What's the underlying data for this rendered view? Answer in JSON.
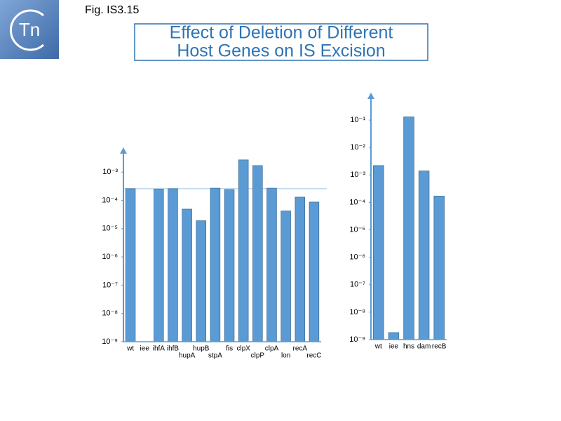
{
  "header": {
    "logo": "Tn",
    "figure": "Fig. IS3.15",
    "title": [
      "Effect of Deletion of Different",
      "Host Genes on IS Excision"
    ]
  },
  "chart_data": [
    {
      "type": "bar",
      "log_scale": true,
      "color": "#5b9bd5",
      "reference_line": true,
      "categories": [
        "wt",
        "iee",
        "ihfA",
        "ihfB",
        "hupA",
        "hupB",
        "stpA",
        "fis",
        "clpX",
        "clpP",
        "clpA",
        "lon",
        "recA",
        "recC"
      ],
      "values": [
        0.00026,
        null,
        0.00025,
        0.00026,
        4.9e-05,
        1.9e-05,
        0.00027,
        0.00024,
        0.0027,
        0.0017,
        0.00027,
        4.2e-05,
        0.00013,
        8.7e-05
      ],
      "ylim": [
        1e-09,
        0.0075
      ],
      "yticks": [
        {
          "value": 1e-09,
          "label": "10⁻⁹"
        },
        {
          "value": 1e-08,
          "label": "10⁻⁸"
        },
        {
          "value": 1e-07,
          "label": "10⁻⁷"
        },
        {
          "value": 1e-06,
          "label": "10⁻⁶"
        },
        {
          "value": 1e-05,
          "label": "10⁻⁵"
        },
        {
          "value": 0.0001,
          "label": "10⁻⁴"
        },
        {
          "value": 0.001,
          "label": "10⁻³"
        }
      ]
    },
    {
      "type": "bar",
      "log_scale": true,
      "color": "#5b9bd5",
      "reference_line": false,
      "categories": [
        "wt",
        "iee",
        "hns",
        "dam",
        "recB"
      ],
      "values": [
        0.0022,
        1.8e-09,
        0.13,
        0.0014,
        0.00017
      ],
      "ylim": [
        1e-09,
        1
      ],
      "yticks": [
        {
          "value": 1e-09,
          "label": "10⁻⁹"
        },
        {
          "value": 1e-08,
          "label": "10⁻⁸"
        },
        {
          "value": 1e-07,
          "label": "10⁻⁷"
        },
        {
          "value": 1e-06,
          "label": "10⁻⁶"
        },
        {
          "value": 1e-05,
          "label": "10⁻⁵"
        },
        {
          "value": 0.0001,
          "label": "10⁻⁴"
        },
        {
          "value": 0.001,
          "label": "10⁻³"
        },
        {
          "value": 0.01,
          "label": "10⁻²"
        },
        {
          "value": 0.1,
          "label": "10⁻¹"
        }
      ]
    }
  ]
}
